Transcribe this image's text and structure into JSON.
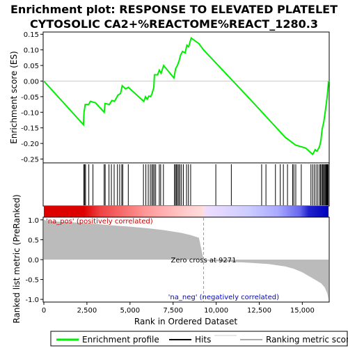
{
  "chart_data": {
    "type": "line",
    "title_line1": "Enrichment plot: RESPONSE TO ELEVATED PLATELET",
    "title_line2": "CYTOSOLIC CA2+%REACTOME%REACT_1280.3",
    "es_panel": {
      "ylabel": "Enrichment score (ES)",
      "ylim": [
        -0.26,
        0.155
      ],
      "yticks": [
        -0.25,
        -0.2,
        -0.15,
        -0.1,
        -0.05,
        0.0,
        0.05,
        0.1,
        0.15
      ],
      "ytick_labels": [
        "-0.25",
        "-0.20",
        "-0.15",
        "-0.10",
        "-0.05",
        "0.00",
        "0.05",
        "0.10",
        "0.15"
      ],
      "color": "#00ee00",
      "points": [
        [
          0,
          0.0
        ],
        [
          2300,
          -0.14
        ],
        [
          2330,
          -0.1
        ],
        [
          2400,
          -0.075
        ],
        [
          2600,
          -0.075
        ],
        [
          2700,
          -0.065
        ],
        [
          3000,
          -0.07
        ],
        [
          3500,
          -0.1
        ],
        [
          3550,
          -0.072
        ],
        [
          3800,
          -0.075
        ],
        [
          3950,
          -0.062
        ],
        [
          4100,
          -0.065
        ],
        [
          4300,
          -0.045
        ],
        [
          4450,
          -0.04
        ],
        [
          4550,
          -0.015
        ],
        [
          4750,
          -0.025
        ],
        [
          4900,
          -0.02
        ],
        [
          5800,
          -0.065
        ],
        [
          5900,
          -0.05
        ],
        [
          6000,
          -0.058
        ],
        [
          6100,
          -0.048
        ],
        [
          6200,
          -0.05
        ],
        [
          6280,
          -0.04
        ],
        [
          6380,
          -0.02
        ],
        [
          6420,
          0.02
        ],
        [
          6600,
          0.02
        ],
        [
          6700,
          0.035
        ],
        [
          6800,
          0.025
        ],
        [
          6950,
          0.05
        ],
        [
          7550,
          0.01
        ],
        [
          7650,
          0.04
        ],
        [
          7750,
          0.05
        ],
        [
          7850,
          0.065
        ],
        [
          7950,
          0.085
        ],
        [
          8050,
          0.095
        ],
        [
          8200,
          0.09
        ],
        [
          8300,
          0.115
        ],
        [
          8400,
          0.11
        ],
        [
          8550,
          0.138
        ],
        [
          9000,
          0.12
        ],
        [
          9271,
          0.1
        ],
        [
          12000,
          -0.06
        ],
        [
          14000,
          -0.18
        ],
        [
          14600,
          -0.205
        ],
        [
          15200,
          -0.215
        ],
        [
          15600,
          -0.235
        ],
        [
          15750,
          -0.22
        ],
        [
          15850,
          -0.225
        ],
        [
          16000,
          -0.21
        ],
        [
          16080,
          -0.19
        ],
        [
          16150,
          -0.155
        ],
        [
          16250,
          -0.13
        ],
        [
          16350,
          -0.09
        ],
        [
          16420,
          -0.06
        ],
        [
          16480,
          -0.03
        ],
        [
          16520,
          0.0
        ]
      ]
    },
    "hits_panel": {
      "hit_ranks": [
        2320,
        2370,
        2420,
        2610,
        2850,
        3500,
        3560,
        3780,
        3920,
        4080,
        4270,
        4400,
        4520,
        4580,
        4900,
        5780,
        5920,
        6060,
        6180,
        6270,
        6340,
        6410,
        6490,
        6700,
        6780,
        6940,
        7580,
        7640,
        7700,
        7760,
        7830,
        7900,
        7990,
        8100,
        8280,
        8390,
        8520,
        9980,
        10880,
        12640,
        12890,
        13440,
        13720,
        13900,
        14140,
        14440,
        14510,
        14620,
        14940,
        15500,
        15600,
        15700,
        15800,
        15900,
        16000,
        16060,
        16120,
        16180,
        16230,
        16280,
        16330,
        16380,
        16420,
        16460,
        16500
      ]
    },
    "rank_panel": {
      "ylabel": "Ranked list metric (PreRanked)",
      "ylim": [
        -1.05,
        1.05
      ],
      "yticks": [
        -1.0,
        -0.5,
        0.0,
        0.5,
        1.0
      ],
      "ytick_labels": [
        "-1.0",
        "-0.5",
        "0.0",
        "0.5",
        "1.0"
      ],
      "zero_cross_label": "Zero cross at 9271",
      "zero_cross": 9271,
      "pos_label": "'na_pos' (positively correlated)",
      "neg_label": "'na_neg' (negatively correlated)",
      "pos_color": "#cc0000",
      "neg_color": "#0000cc",
      "metric_points": [
        [
          0,
          1.0
        ],
        [
          300,
          0.97
        ],
        [
          1000,
          0.95
        ],
        [
          2000,
          0.93
        ],
        [
          3000,
          0.9
        ],
        [
          4000,
          0.86
        ],
        [
          5000,
          0.83
        ],
        [
          6000,
          0.79
        ],
        [
          7000,
          0.74
        ],
        [
          8000,
          0.67
        ],
        [
          8500,
          0.62
        ],
        [
          9000,
          0.55
        ],
        [
          9271,
          0.0
        ],
        [
          9300,
          -0.02
        ],
        [
          10000,
          -0.04
        ],
        [
          11000,
          -0.06
        ],
        [
          12000,
          -0.08
        ],
        [
          13000,
          -0.11
        ],
        [
          14000,
          -0.17
        ],
        [
          14500,
          -0.23
        ],
        [
          15000,
          -0.32
        ],
        [
          15400,
          -0.42
        ],
        [
          15800,
          -0.52
        ],
        [
          16100,
          -0.6
        ],
        [
          16300,
          -0.7
        ],
        [
          16450,
          -0.85
        ],
        [
          16520,
          -1.0
        ]
      ]
    },
    "xlabel": "Rank in Ordered Dataset",
    "xlim": [
      0,
      16520
    ],
    "xticks": [
      0,
      2500,
      5000,
      7500,
      10000,
      12500,
      15000
    ],
    "xtick_labels": [
      "0",
      "2,500",
      "5,000",
      "7,500",
      "10,000",
      "12,500",
      "15,000"
    ],
    "legend": {
      "placement": "bottom",
      "items": [
        {
          "label": "Enrichment profile",
          "color": "#00ee00"
        },
        {
          "label": "Hits",
          "color": "#000000"
        },
        {
          "label": "Ranking metric scores",
          "color": "#aaaaaa"
        }
      ]
    }
  }
}
